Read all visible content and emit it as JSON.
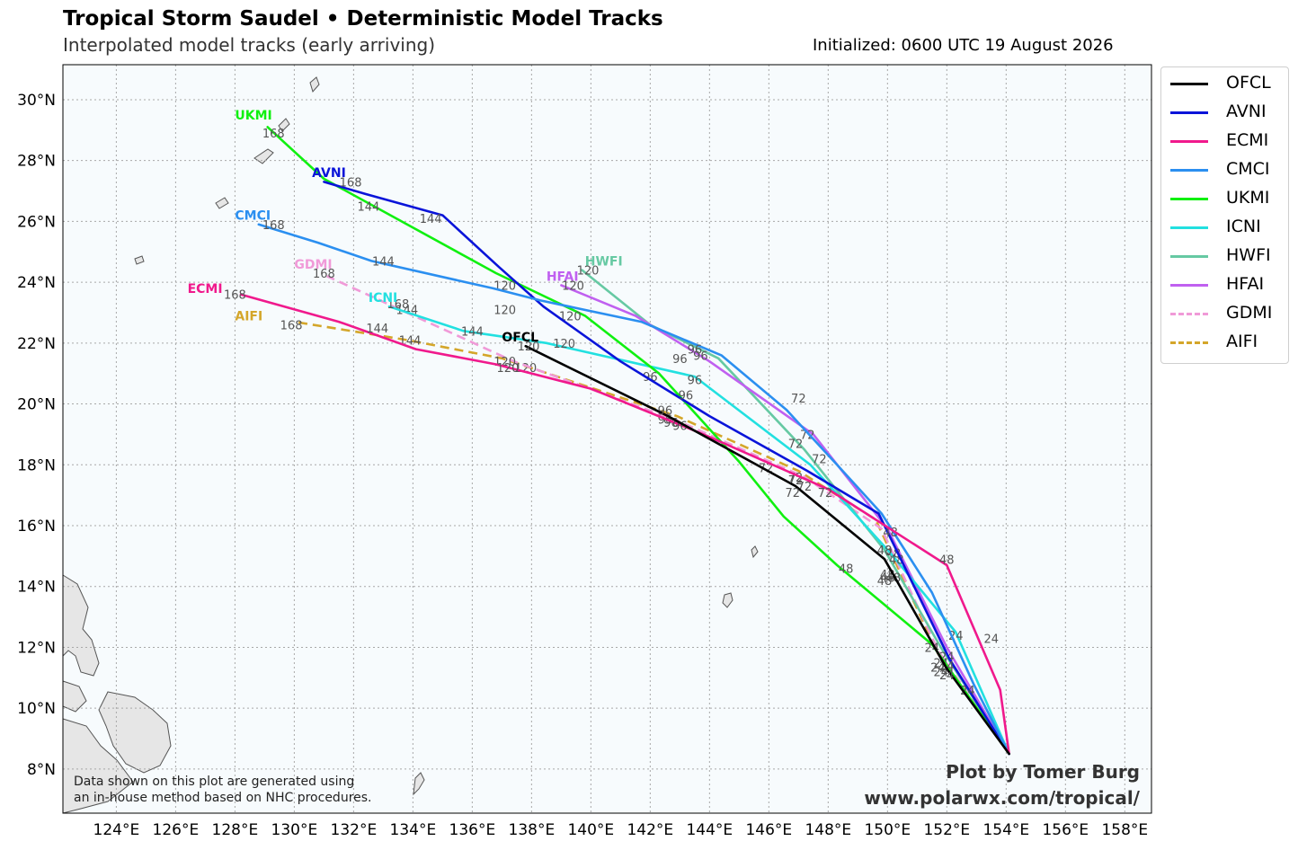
{
  "header": {
    "title": "Tropical Storm Saudel • Deterministic Model Tracks",
    "subtitle": "Interpolated model tracks (early arriving)",
    "initialized": "Initialized: 0600 UTC 19 August 2026"
  },
  "map": {
    "lon_range": [
      122.2,
      158.9
    ],
    "lat_range": [
      6.55,
      31.15
    ],
    "lon_ticks": [
      124,
      126,
      128,
      130,
      132,
      134,
      136,
      138,
      140,
      142,
      144,
      146,
      148,
      150,
      152,
      154,
      156,
      158
    ],
    "lat_ticks": [
      8,
      10,
      12,
      14,
      16,
      18,
      20,
      22,
      24,
      26,
      28,
      30
    ],
    "lon_labels": [
      "124°E",
      "126°E",
      "128°E",
      "130°E",
      "132°E",
      "134°E",
      "136°E",
      "138°E",
      "140°E",
      "142°E",
      "144°E",
      "146°E",
      "148°E",
      "150°E",
      "152°E",
      "154°E",
      "156°E",
      "158°E"
    ],
    "lat_labels": [
      "8°N",
      "10°N",
      "12°N",
      "14°N",
      "16°N",
      "18°N",
      "20°N",
      "22°N",
      "24°N",
      "26°N",
      "28°N",
      "30°N"
    ],
    "ocean_color": "#f7fbfd",
    "land_color": "#e6e6e6",
    "grid": true
  },
  "legend": [
    {
      "name": "OFCL",
      "color": "#000000",
      "dashed": false
    },
    {
      "name": "AVNI",
      "color": "#0a14d9",
      "dashed": false
    },
    {
      "name": "ECMI",
      "color": "#f0198c",
      "dashed": false
    },
    {
      "name": "CMCI",
      "color": "#2b8ff0",
      "dashed": false
    },
    {
      "name": "UKMI",
      "color": "#10f010",
      "dashed": false
    },
    {
      "name": "ICNI",
      "color": "#22e0e0",
      "dashed": false
    },
    {
      "name": "HWFI",
      "color": "#66c9a3",
      "dashed": false
    },
    {
      "name": "HFAI",
      "color": "#c060f0",
      "dashed": false
    },
    {
      "name": "GDMI",
      "color": "#f09ad8",
      "dashed": true
    },
    {
      "name": "AIFI",
      "color": "#d4a62a",
      "dashed": true
    }
  ],
  "chart_data": {
    "type": "map-tracks",
    "tracks": [
      {
        "name": "AIFI",
        "color": "#d4a62a",
        "dashed": true,
        "points": [
          [
            154.1,
            8.5
          ],
          [
            151.7,
            11.8
          ],
          [
            149.6,
            16.2
          ],
          [
            147.0,
            17.8
          ],
          [
            142.9,
            19.6
          ],
          [
            137.0,
            21.5
          ],
          [
            133.8,
            22.1
          ],
          [
            130.0,
            22.7
          ]
        ],
        "labels": [
          [
            151.7,
            11.35,
            "24"
          ],
          [
            150.0,
            14.4,
            "48"
          ],
          [
            146.9,
            17.5,
            "72"
          ],
          [
            142.5,
            19.5,
            "96"
          ],
          [
            137.8,
            21.2,
            "120"
          ],
          [
            133.9,
            22.1,
            "144"
          ],
          [
            129.9,
            22.6,
            "168"
          ]
        ],
        "tag": [
          128.0,
          22.9,
          "AIFI"
        ]
      },
      {
        "name": "GDMI",
        "color": "#f09ad8",
        "dashed": true,
        "points": [
          [
            154.1,
            8.5
          ],
          [
            151.7,
            11.9
          ],
          [
            149.8,
            15.9
          ],
          [
            147.2,
            17.6
          ],
          [
            142.8,
            19.5
          ],
          [
            137.4,
            21.4
          ],
          [
            131.1,
            24.2
          ]
        ],
        "labels": [
          [
            151.8,
            11.2,
            "24"
          ],
          [
            150.0,
            14.3,
            "48"
          ],
          [
            147.2,
            17.3,
            "72"
          ],
          [
            142.7,
            19.4,
            "96"
          ],
          [
            137.1,
            21.4,
            "120"
          ],
          [
            133.8,
            23.1,
            "144"
          ],
          [
            131.0,
            24.3,
            "168"
          ]
        ],
        "tag": [
          130.0,
          24.6,
          "GDMI"
        ]
      },
      {
        "name": "HWFI",
        "color": "#66c9a3",
        "dashed": false,
        "points": [
          [
            154.1,
            8.5
          ],
          [
            151.8,
            12.0
          ],
          [
            149.9,
            15.2
          ],
          [
            147.2,
            18.5
          ],
          [
            144.3,
            21.5
          ],
          [
            142.0,
            22.6
          ],
          [
            139.7,
            24.4
          ]
        ],
        "labels": [
          [
            151.8,
            11.5,
            "24"
          ],
          [
            150.2,
            14.3,
            "48"
          ],
          [
            146.9,
            18.7,
            "72"
          ],
          [
            143.0,
            21.5,
            "96"
          ],
          [
            139.9,
            24.4,
            "120"
          ]
        ],
        "tag": [
          139.8,
          24.7,
          "HWFI"
        ]
      },
      {
        "name": "HFAI",
        "color": "#c060f0",
        "dashed": false,
        "points": [
          [
            154.1,
            8.5
          ],
          [
            152.0,
            12.0
          ],
          [
            150.0,
            15.9
          ],
          [
            147.5,
            19.0
          ],
          [
            144.0,
            21.4
          ],
          [
            141.5,
            22.9
          ],
          [
            139.0,
            23.9
          ]
        ],
        "labels": [
          [
            152.0,
            11.7,
            "24"
          ],
          [
            150.2,
            15.1,
            "48"
          ],
          [
            147.3,
            19.0,
            "72"
          ],
          [
            143.7,
            21.6,
            "96"
          ],
          [
            139.4,
            23.9,
            "120"
          ]
        ],
        "tag": [
          138.5,
          24.2,
          "HFAI"
        ]
      },
      {
        "name": "ICNI",
        "color": "#22e0e0",
        "dashed": false,
        "points": [
          [
            154.1,
            8.5
          ],
          [
            152.3,
            12.5
          ],
          [
            150.1,
            15.1
          ],
          [
            147.4,
            18.0
          ],
          [
            143.5,
            20.9
          ],
          [
            138.5,
            22.0
          ],
          [
            135.7,
            22.4
          ],
          [
            133.2,
            23.2
          ]
        ],
        "labels": [
          [
            152.3,
            12.4,
            "24"
          ],
          [
            150.3,
            14.9,
            "48"
          ],
          [
            147.7,
            18.2,
            "72"
          ],
          [
            143.5,
            20.8,
            "96"
          ],
          [
            139.1,
            22.0,
            "120"
          ],
          [
            136.0,
            22.4,
            "144"
          ],
          [
            133.5,
            23.3,
            "168"
          ]
        ],
        "tag": [
          132.5,
          23.5,
          "ICNI"
        ]
      },
      {
        "name": "UKMI",
        "color": "#10f010",
        "dashed": false,
        "points": [
          [
            154.1,
            8.5
          ],
          [
            151.5,
            12.1
          ],
          [
            148.3,
            14.7
          ],
          [
            146.5,
            16.3
          ],
          [
            145.0,
            18.1
          ],
          [
            142.3,
            21.0
          ],
          [
            139.8,
            22.9
          ],
          [
            136.8,
            24.3
          ],
          [
            131.0,
            27.4
          ],
          [
            129.1,
            29.1
          ]
        ],
        "labels": [
          [
            151.5,
            12.0,
            "24"
          ],
          [
            148.6,
            14.6,
            "48"
          ],
          [
            145.9,
            17.9,
            "72"
          ],
          [
            142.0,
            20.9,
            "96"
          ],
          [
            139.3,
            22.9,
            "120"
          ],
          [
            132.5,
            26.5,
            "144"
          ],
          [
            129.3,
            28.9,
            "168"
          ]
        ],
        "tag": [
          128.0,
          29.5,
          "UKMI"
        ]
      },
      {
        "name": "AVNI",
        "color": "#0a14d9",
        "dashed": false,
        "points": [
          [
            154.1,
            8.5
          ],
          [
            152.1,
            11.6
          ],
          [
            149.7,
            16.4
          ],
          [
            147.3,
            17.8
          ],
          [
            144.0,
            19.6
          ],
          [
            141.0,
            21.4
          ],
          [
            138.4,
            23.2
          ],
          [
            136.9,
            24.5
          ],
          [
            135.0,
            26.2
          ],
          [
            132.4,
            26.9
          ],
          [
            131.0,
            27.3
          ]
        ],
        "labels": [
          [
            152.0,
            11.4,
            "24"
          ],
          [
            149.9,
            15.2,
            "48"
          ],
          [
            146.9,
            17.6,
            "72"
          ],
          [
            143.2,
            20.3,
            "96"
          ],
          [
            137.1,
            23.9,
            "120"
          ],
          [
            134.6,
            26.1,
            "144"
          ],
          [
            131.9,
            27.3,
            "168"
          ]
        ],
        "tag": [
          130.6,
          27.6,
          "AVNI"
        ]
      },
      {
        "name": "CMCI",
        "color": "#2b8ff0",
        "dashed": false,
        "points": [
          [
            154.1,
            8.5
          ],
          [
            152.9,
            10.8
          ],
          [
            151.5,
            13.8
          ],
          [
            149.8,
            16.4
          ],
          [
            148.3,
            18.0
          ],
          [
            146.6,
            19.8
          ],
          [
            144.4,
            21.6
          ],
          [
            141.7,
            22.7
          ],
          [
            138.3,
            23.4
          ],
          [
            136.7,
            23.8
          ],
          [
            132.6,
            24.7
          ],
          [
            130.8,
            25.3
          ],
          [
            128.8,
            25.9
          ]
        ],
        "labels": [
          [
            152.7,
            10.6,
            "24"
          ],
          [
            150.1,
            15.8,
            "48"
          ],
          [
            147.0,
            20.2,
            "72"
          ],
          [
            143.5,
            21.8,
            "96"
          ],
          [
            137.1,
            23.1,
            "120"
          ],
          [
            133.0,
            24.7,
            "144"
          ],
          [
            129.3,
            25.9,
            "168"
          ]
        ],
        "tag": [
          128.0,
          26.2,
          "CMCI"
        ]
      },
      {
        "name": "ECMI",
        "color": "#f0198c",
        "dashed": false,
        "points": [
          [
            154.1,
            8.5
          ],
          [
            153.8,
            10.6
          ],
          [
            152.0,
            14.7
          ],
          [
            148.0,
            17.2
          ],
          [
            143.8,
            19.0
          ],
          [
            140.0,
            20.5
          ],
          [
            136.8,
            21.3
          ],
          [
            134.1,
            21.8
          ],
          [
            131.5,
            22.7
          ],
          [
            128.2,
            23.6
          ]
        ],
        "labels": [
          [
            153.5,
            12.3,
            "24"
          ],
          [
            152.0,
            14.9,
            "48"
          ],
          [
            147.9,
            17.1,
            "72"
          ],
          [
            143.0,
            19.3,
            "96"
          ],
          [
            137.2,
            21.2,
            "120"
          ],
          [
            132.8,
            22.5,
            "144"
          ],
          [
            128.0,
            23.6,
            "168"
          ]
        ],
        "tag": [
          126.4,
          23.8,
          "ECMI"
        ]
      },
      {
        "name": "OFCL",
        "color": "#000000",
        "dashed": false,
        "points": [
          [
            154.1,
            8.5
          ],
          [
            152.0,
            11.3
          ],
          [
            149.9,
            14.9
          ],
          [
            146.9,
            17.3
          ],
          [
            142.6,
            19.6
          ],
          [
            137.8,
            21.9
          ]
        ],
        "labels": [
          [
            152.0,
            11.1,
            "24"
          ],
          [
            149.9,
            14.2,
            "48"
          ],
          [
            146.8,
            17.1,
            "72"
          ],
          [
            142.5,
            19.8,
            "96"
          ],
          [
            137.9,
            21.9,
            "120"
          ]
        ],
        "tag": [
          137.0,
          22.2,
          "OFCL"
        ]
      }
    ]
  },
  "footer": {
    "disclaimer_1": "Data shown on this plot are generated using",
    "disclaimer_2": "an in-house method based on NHC procedures.",
    "credit_1": "Plot by Tomer Burg",
    "credit_2": "www.polarwx.com/tropical/"
  }
}
